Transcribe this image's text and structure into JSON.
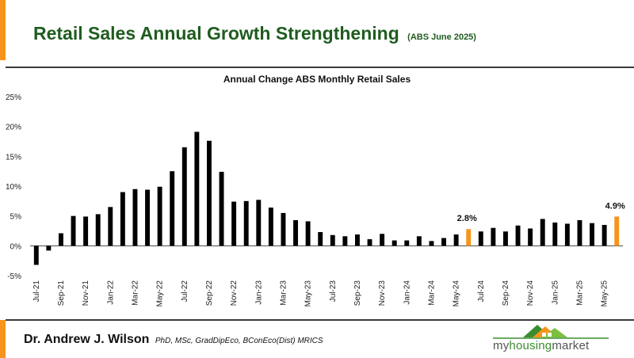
{
  "header": {
    "title": "Retail Sales Annual Growth Strengthening",
    "subtitle": "(ABS June 2025)"
  },
  "footer": {
    "author_name": "Dr. Andrew J. Wilson",
    "author_credentials": "PhD, MSc, GradDipEco, BConEco(Dist) MRICS",
    "logo_part_a": "my",
    "logo_part_b": "housing",
    "logo_part_c": "market"
  },
  "colors": {
    "accent": "#f7941d",
    "bar_default": "#000000",
    "bar_highlight": "#f7941d",
    "title_green": "#1f5c1f"
  },
  "chart_data": {
    "type": "bar",
    "title": "Annual Change ABS Monthly Retail Sales",
    "xlabel": "",
    "ylabel": "",
    "ylim": [
      -5,
      25
    ],
    "yticks": [
      -5,
      0,
      5,
      10,
      15,
      20,
      25
    ],
    "ytick_labels": [
      "-5%",
      "0%",
      "5%",
      "10%",
      "15%",
      "20%",
      "25%"
    ],
    "categories": [
      "Jul-21",
      "Aug-21",
      "Sep-21",
      "Oct-21",
      "Nov-21",
      "Dec-21",
      "Jan-22",
      "Feb-22",
      "Mar-22",
      "Apr-22",
      "May-22",
      "Jun-22",
      "Jul-22",
      "Aug-22",
      "Sep-22",
      "Oct-22",
      "Nov-22",
      "Dec-22",
      "Jan-23",
      "Feb-23",
      "Mar-23",
      "Apr-23",
      "May-23",
      "Jun-23",
      "Jul-23",
      "Aug-23",
      "Sep-23",
      "Oct-23",
      "Nov-23",
      "Dec-23",
      "Jan-24",
      "Feb-24",
      "Mar-24",
      "Apr-24",
      "May-24",
      "Jun-24",
      "Jul-24",
      "Aug-24",
      "Sep-24",
      "Oct-24",
      "Nov-24",
      "Dec-24",
      "Jan-25",
      "Feb-25",
      "Mar-25",
      "Apr-25",
      "May-25",
      "Jun-25"
    ],
    "tick_labels": [
      "Jul-21",
      "Sep-21",
      "Nov-21",
      "Jan-22",
      "Mar-22",
      "May-22",
      "Jul-22",
      "Sep-22",
      "Nov-22",
      "Jan-23",
      "Mar-23",
      "May-23",
      "Jul-23",
      "Sep-23",
      "Nov-23",
      "Jan-24",
      "Mar-24",
      "May-24",
      "Jul-24",
      "Sep-24",
      "Nov-24",
      "Jan-25",
      "Mar-25",
      "May-25"
    ],
    "values": [
      -3.2,
      -0.8,
      2.1,
      5.0,
      4.9,
      5.3,
      6.5,
      9.0,
      9.5,
      9.4,
      9.9,
      12.5,
      16.5,
      19.1,
      17.6,
      12.4,
      7.4,
      7.5,
      7.7,
      6.4,
      5.5,
      4.3,
      4.1,
      2.3,
      1.8,
      1.6,
      1.9,
      1.1,
      2.0,
      0.9,
      0.9,
      1.6,
      0.8,
      1.3,
      1.9,
      2.8,
      2.4,
      3.0,
      2.4,
      3.4,
      2.9,
      4.5,
      3.9,
      3.7,
      4.3,
      3.8,
      3.5,
      4.9
    ],
    "highlight_indices": [
      35,
      47
    ],
    "annotations": [
      {
        "index": 35,
        "text": "2.8%"
      },
      {
        "index": 47,
        "text": "4.9%"
      }
    ]
  }
}
